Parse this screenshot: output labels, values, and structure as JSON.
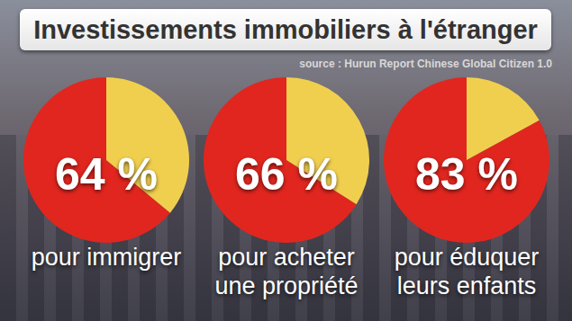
{
  "chart_data": {
    "type": "pie",
    "title": "Investissements immobiliers à l'étranger",
    "subtitle": "source : Hurun Report Chinese Global Citizen 1.0",
    "colors": [
      "#e1261f",
      "#f1cf4e"
    ],
    "series": [
      {
        "name": "pour immigrer",
        "values": [
          64,
          36
        ],
        "value_labels": [
          "64 %",
          null
        ]
      },
      {
        "name": "pour acheter une propriété",
        "values": [
          66,
          34
        ],
        "value_labels": [
          "66 %",
          null
        ]
      },
      {
        "name": "pour éduquer leurs enfants",
        "values": [
          83,
          17
        ],
        "value_labels": [
          "83 %",
          null
        ]
      }
    ]
  }
}
